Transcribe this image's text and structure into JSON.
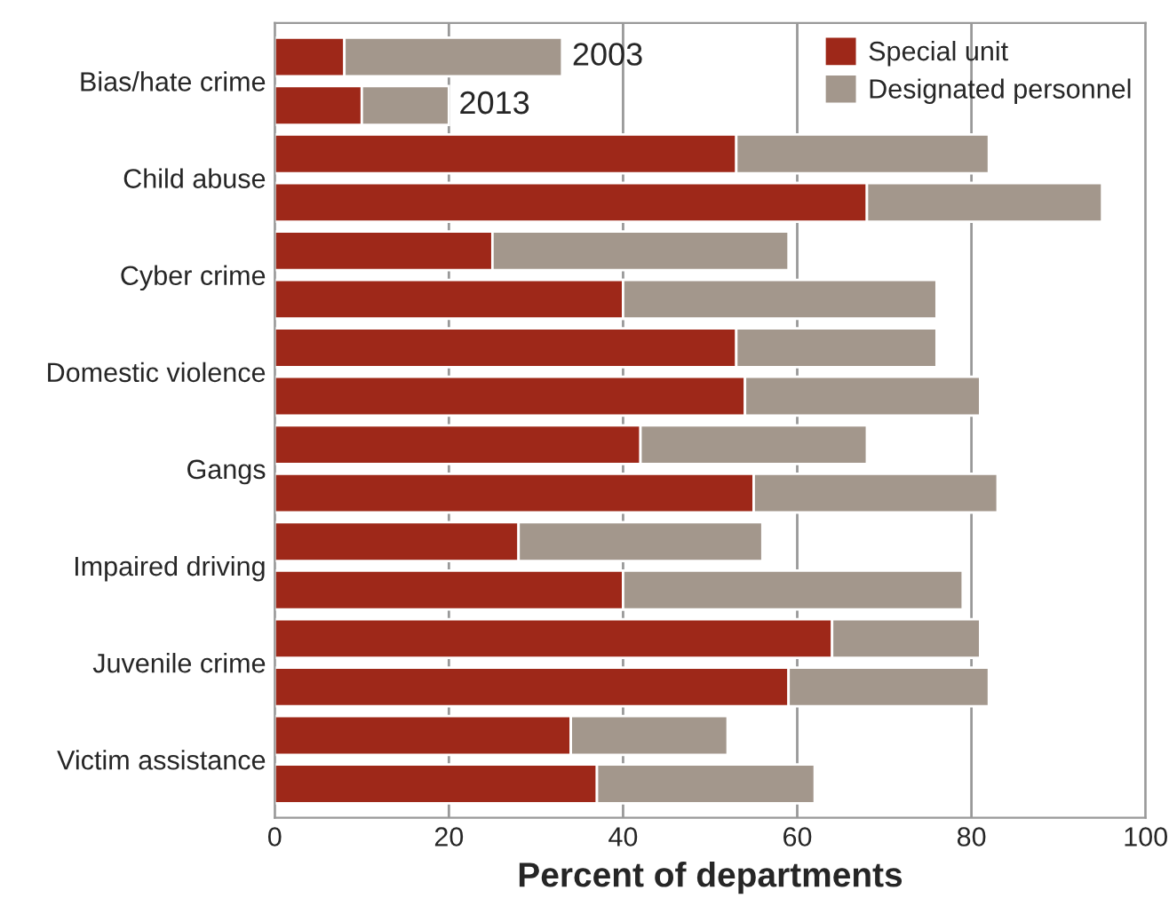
{
  "chart_data": {
    "type": "bar",
    "orientation": "horizontal",
    "stacked": true,
    "xlabel": "Percent of departments",
    "categories": [
      "Bias/hate crime",
      null,
      "Child abuse",
      null,
      "Cyber crime",
      null,
      "Domestic violence",
      null,
      "Gangs",
      null,
      "Impaired driving",
      null,
      "Juvenile crime",
      null,
      "Victim assistance",
      null
    ],
    "series": [
      {
        "name": "Special unit",
        "color": "#9e2819",
        "values": [
          8,
          10,
          53,
          68,
          25,
          40,
          53,
          54,
          42,
          55,
          28,
          40,
          64,
          59,
          34,
          37
        ]
      },
      {
        "name": "Designated personnel",
        "color": "#a3978c",
        "values": [
          25,
          10,
          29,
          27,
          34,
          36,
          23,
          27,
          26,
          28,
          28,
          39,
          17,
          23,
          18,
          25
        ]
      }
    ],
    "annotations": [
      "2003",
      "2013"
    ],
    "xlim": [
      0,
      100
    ],
    "xticks": [
      0,
      20,
      40,
      60,
      80,
      100
    ],
    "grid": "x",
    "legend": "top right"
  }
}
